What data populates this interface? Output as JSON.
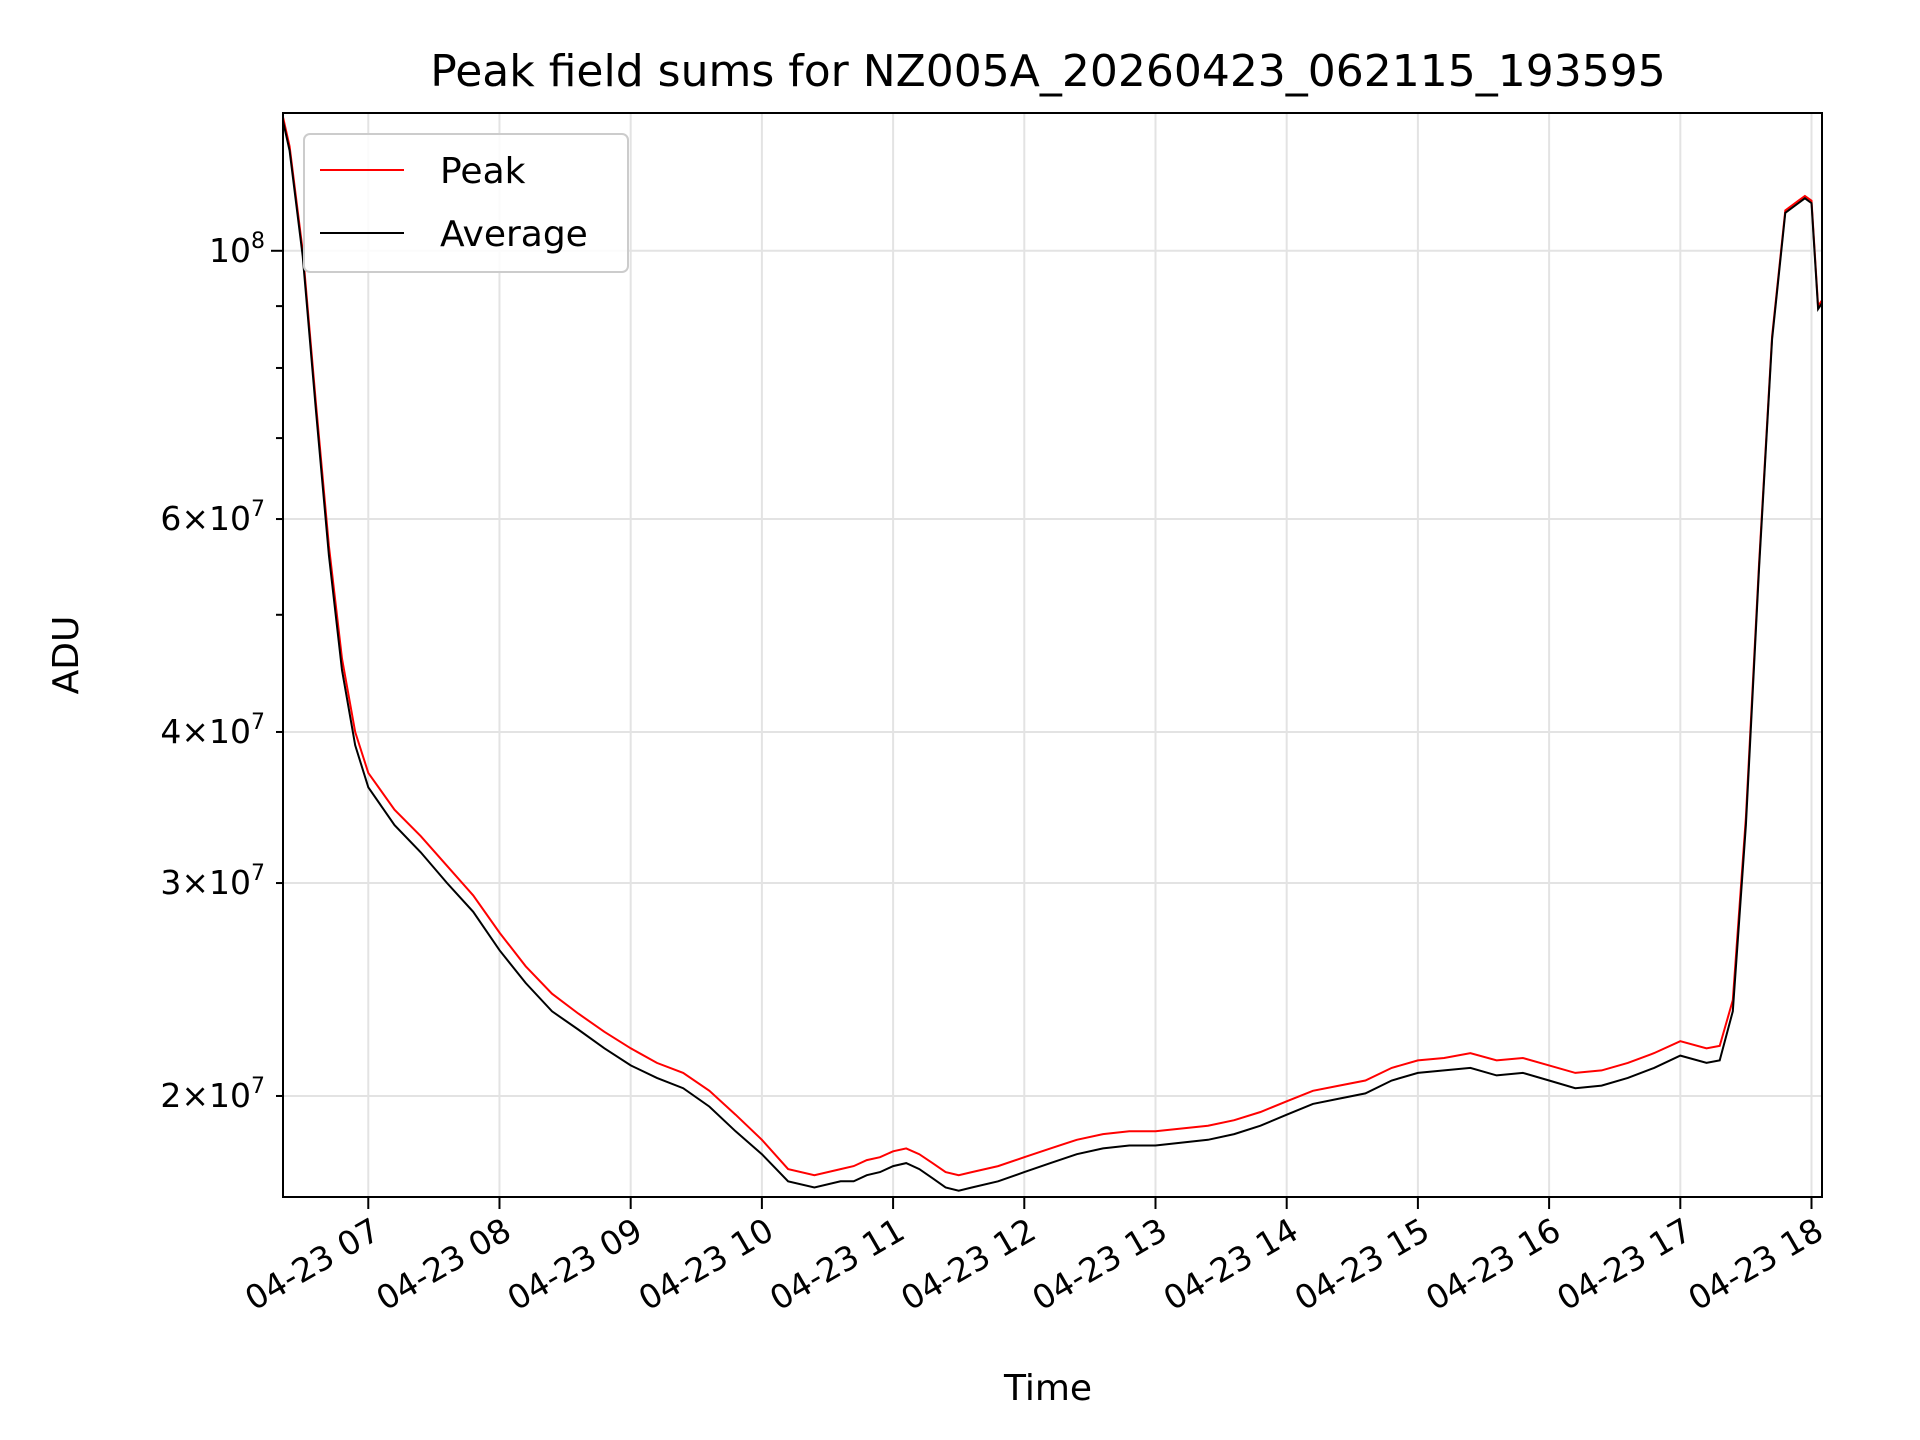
{
  "chart_data": {
    "type": "line",
    "title": "Peak field sums for NZ005A_20260423_062115_193595",
    "xlabel": "Time",
    "ylabel": "ADU",
    "yscale": "log",
    "ylim": [
      16500000,
      130000000
    ],
    "xlim": [
      6.35,
      18.08
    ],
    "grid": true,
    "legend_position": "upper-left",
    "colors": {
      "peak": "#ff0000",
      "average": "#000000"
    },
    "x_ticks": [
      {
        "value": 7,
        "label": "04-23 07"
      },
      {
        "value": 8,
        "label": "04-23 08"
      },
      {
        "value": 9,
        "label": "04-23 09"
      },
      {
        "value": 10,
        "label": "04-23 10"
      },
      {
        "value": 11,
        "label": "04-23 11"
      },
      {
        "value": 12,
        "label": "04-23 12"
      },
      {
        "value": 13,
        "label": "04-23 13"
      },
      {
        "value": 14,
        "label": "04-23 14"
      },
      {
        "value": 15,
        "label": "04-23 15"
      },
      {
        "value": 16,
        "label": "04-23 16"
      },
      {
        "value": 17,
        "label": "04-23 17"
      },
      {
        "value": 18,
        "label": "04-23 18"
      }
    ],
    "y_major_ticks": [
      {
        "value": 100000000,
        "base": "10",
        "exp": "8"
      }
    ],
    "y_minor_ticks": [
      {
        "value": 20000000,
        "mant": "2",
        "base": "10",
        "exp": "7"
      },
      {
        "value": 30000000,
        "mant": "3",
        "base": "10",
        "exp": "7"
      },
      {
        "value": 40000000,
        "mant": "4",
        "base": "10",
        "exp": "7"
      },
      {
        "value": 60000000,
        "mant": "6",
        "base": "10",
        "exp": "7"
      }
    ],
    "y_minor_unlabeled": [
      50000000,
      70000000,
      80000000,
      90000000
    ],
    "series": [
      {
        "name": "Peak",
        "x": [
          6.35,
          6.4,
          6.5,
          6.6,
          6.7,
          6.8,
          6.9,
          7.0,
          7.2,
          7.4,
          7.6,
          7.8,
          8.0,
          8.2,
          8.4,
          8.6,
          8.8,
          9.0,
          9.2,
          9.4,
          9.6,
          9.8,
          10.0,
          10.2,
          10.4,
          10.6,
          10.7,
          10.8,
          10.9,
          11.0,
          11.1,
          11.2,
          11.3,
          11.4,
          11.5,
          11.6,
          11.8,
          12.0,
          12.2,
          12.4,
          12.6,
          12.8,
          13.0,
          13.2,
          13.4,
          13.6,
          13.8,
          14.0,
          14.2,
          14.4,
          14.6,
          14.8,
          15.0,
          15.2,
          15.4,
          15.6,
          15.8,
          16.0,
          16.2,
          16.4,
          16.6,
          16.8,
          17.0,
          17.2,
          17.3,
          17.4,
          17.5,
          17.6,
          17.7,
          17.8,
          17.9,
          17.95,
          18.0,
          18.05,
          18.08
        ],
        "y": [
          129000000,
          122000000,
          100000000,
          75000000,
          57000000,
          46000000,
          40000000,
          37000000,
          34500000,
          32800000,
          31000000,
          29300000,
          27300000,
          25600000,
          24300000,
          23400000,
          22600000,
          21900000,
          21300000,
          20900000,
          20200000,
          19300000,
          18400000,
          17400000,
          17200000,
          17400000,
          17500000,
          17700000,
          17800000,
          18000000,
          18100000,
          17900000,
          17600000,
          17300000,
          17200000,
          17300000,
          17500000,
          17800000,
          18100000,
          18400000,
          18600000,
          18700000,
          18700000,
          18800000,
          18900000,
          19100000,
          19400000,
          19800000,
          20200000,
          20400000,
          20600000,
          21100000,
          21400000,
          21500000,
          21700000,
          21400000,
          21500000,
          21200000,
          20900000,
          21000000,
          21300000,
          21700000,
          22200000,
          21900000,
          22000000,
          24000000,
          34000000,
          55000000,
          85000000,
          108000000,
          110000000,
          111000000,
          110000000,
          90000000,
          91000000
        ]
      },
      {
        "name": "Average",
        "x": [
          6.35,
          6.4,
          6.5,
          6.6,
          6.7,
          6.8,
          6.9,
          7.0,
          7.2,
          7.4,
          7.6,
          7.8,
          8.0,
          8.2,
          8.4,
          8.6,
          8.8,
          9.0,
          9.2,
          9.4,
          9.6,
          9.8,
          10.0,
          10.2,
          10.4,
          10.6,
          10.7,
          10.8,
          10.9,
          11.0,
          11.1,
          11.2,
          11.3,
          11.4,
          11.5,
          11.6,
          11.8,
          12.0,
          12.2,
          12.4,
          12.6,
          12.8,
          13.0,
          13.2,
          13.4,
          13.6,
          13.8,
          14.0,
          14.2,
          14.4,
          14.6,
          14.8,
          15.0,
          15.2,
          15.4,
          15.6,
          15.8,
          16.0,
          16.2,
          16.4,
          16.6,
          16.8,
          17.0,
          17.2,
          17.3,
          17.4,
          17.5,
          17.6,
          17.7,
          17.8,
          17.9,
          17.95,
          18.0,
          18.05,
          18.08
        ],
        "y": [
          128000000,
          121000000,
          99000000,
          74000000,
          56000000,
          45000000,
          39000000,
          36000000,
          33500000,
          31800000,
          30000000,
          28400000,
          26400000,
          24800000,
          23500000,
          22700000,
          21900000,
          21200000,
          20700000,
          20300000,
          19600000,
          18700000,
          17900000,
          17000000,
          16800000,
          17000000,
          17000000,
          17200000,
          17300000,
          17500000,
          17600000,
          17400000,
          17100000,
          16800000,
          16700000,
          16800000,
          17000000,
          17300000,
          17600000,
          17900000,
          18100000,
          18200000,
          18200000,
          18300000,
          18400000,
          18600000,
          18900000,
          19300000,
          19700000,
          19900000,
          20100000,
          20600000,
          20900000,
          21000000,
          21100000,
          20800000,
          20900000,
          20600000,
          20300000,
          20400000,
          20700000,
          21100000,
          21600000,
          21300000,
          21400000,
          23500000,
          33500000,
          54500000,
          84500000,
          107500000,
          109500000,
          110500000,
          109500000,
          89500000,
          90500000
        ]
      }
    ],
    "legend": [
      {
        "name": "Peak",
        "label": "Peak"
      },
      {
        "name": "Average",
        "label": "Average"
      }
    ]
  }
}
